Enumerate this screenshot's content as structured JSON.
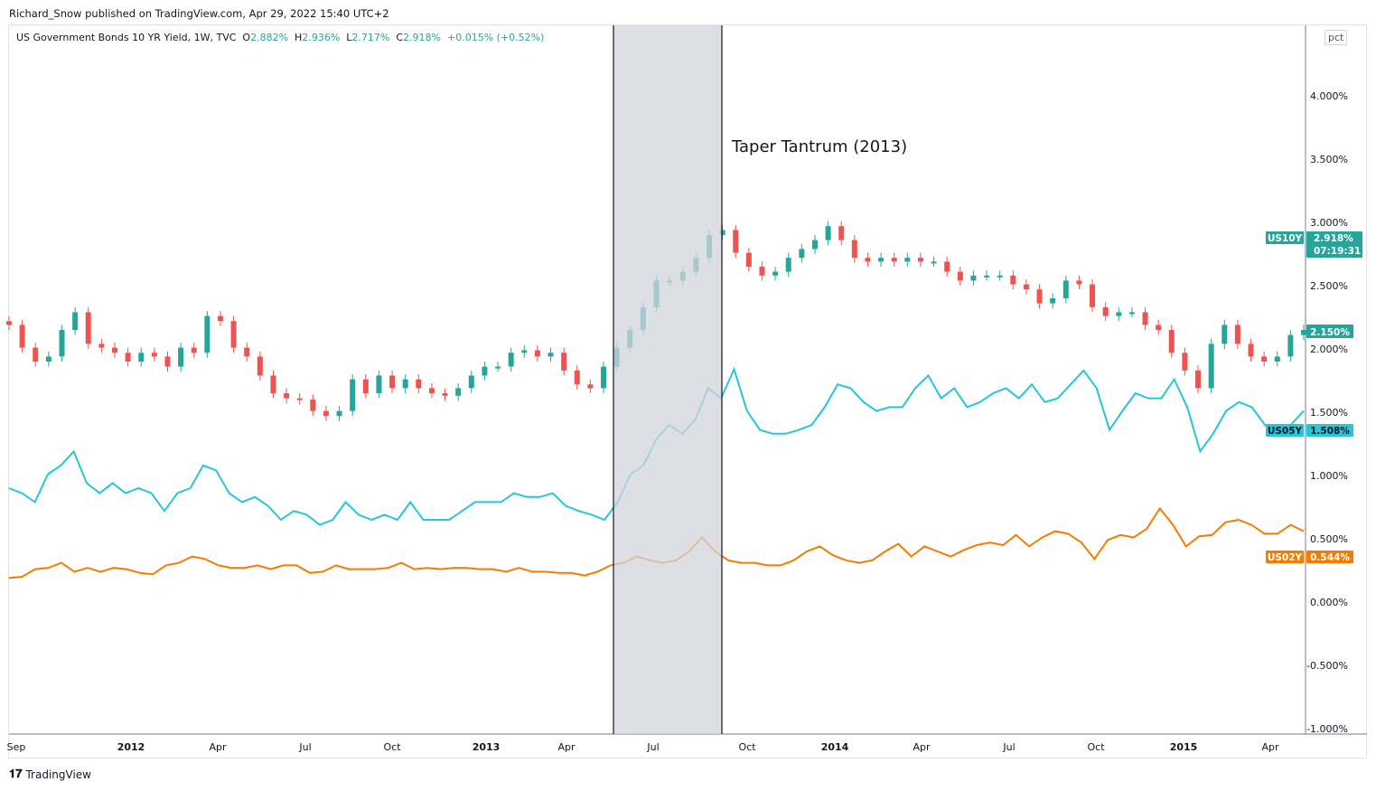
{
  "publisher_line": "Richard_Snow published on TradingView.com, Apr 29, 2022 15:40 UTC+2",
  "legend": {
    "symbol": "US Government Bonds 10 YR Yield, 1W, TVC",
    "o_label": "O",
    "o": "2.882%",
    "h_label": "H",
    "h": "2.936%",
    "l_label": "L",
    "l": "2.717%",
    "c_label": "C",
    "c": "2.918%",
    "change": "+0.015% (+0.52%)"
  },
  "scale_button": "pct",
  "footer_logo": "TradingView",
  "colors": {
    "up": "#26a69a",
    "down": "#ef5350",
    "us05y": "#26c6da",
    "us02y": "#f57c00",
    "shade": "#d1d4dc"
  },
  "chart_data": {
    "type": "candlestick+line",
    "title": "US Government Bonds 10 YR Yield, 1W, TVC",
    "ylabel": "pct",
    "ylim": [
      -1.0,
      4.5
    ],
    "y_ticks": [
      "4.000%",
      "3.500%",
      "3.000%",
      "2.500%",
      "2.000%",
      "1.500%",
      "1.000%",
      "0.500%",
      "0.000%",
      "-0.500%",
      "-1.000%"
    ],
    "y_tick_values": [
      4.0,
      3.5,
      3.0,
      2.5,
      2.0,
      1.5,
      1.0,
      0.5,
      0.0,
      -0.5,
      -1.0
    ],
    "x_ticks": [
      "Sep",
      "2012",
      "Apr",
      "Jul",
      "Oct",
      "2013",
      "Apr",
      "Jul",
      "Oct",
      "2014",
      "Apr",
      "Jul",
      "Oct",
      "2015",
      "Apr"
    ],
    "x_tick_bold": [
      false,
      true,
      false,
      false,
      false,
      true,
      false,
      false,
      false,
      true,
      false,
      false,
      false,
      true,
      false
    ],
    "x_range": [
      "2011-08",
      "2015-05"
    ],
    "annotation": {
      "text": "Taper Tantrum (2013)",
      "start": "2013-05",
      "end": "2013-09"
    },
    "series": [
      {
        "name": "US10Y",
        "kind": "candles",
        "last_label": "2.918%",
        "countdown": "07:19:31",
        "price_label": "2.150%",
        "closes": [
          2.19,
          2.01,
          1.9,
          1.94,
          2.15,
          2.29,
          2.04,
          2.01,
          1.97,
          1.9,
          1.97,
          1.94,
          1.86,
          2.01,
          1.97,
          2.26,
          2.22,
          2.01,
          1.94,
          1.79,
          1.65,
          1.61,
          1.6,
          1.51,
          1.47,
          1.51,
          1.76,
          1.65,
          1.79,
          1.69,
          1.76,
          1.69,
          1.65,
          1.63,
          1.69,
          1.79,
          1.86,
          1.86,
          1.97,
          1.99,
          1.94,
          1.97,
          1.83,
          1.72,
          1.69,
          1.86,
          2.01,
          2.15,
          2.33,
          2.54,
          2.54,
          2.61,
          2.72,
          2.9,
          2.94,
          2.76,
          2.65,
          2.58,
          2.61,
          2.72,
          2.79,
          2.86,
          2.97,
          2.86,
          2.72,
          2.69,
          2.72,
          2.69,
          2.72,
          2.69,
          2.69,
          2.61,
          2.54,
          2.58,
          2.58,
          2.58,
          2.51,
          2.47,
          2.36,
          2.4,
          2.54,
          2.51,
          2.33,
          2.26,
          2.29,
          2.29,
          2.19,
          2.15,
          1.97,
          1.83,
          1.69,
          2.04,
          2.19,
          2.04,
          1.94,
          1.9,
          1.94,
          2.11,
          2.15
        ]
      },
      {
        "name": "US05Y",
        "kind": "line",
        "last_label": "1.508%",
        "values": [
          0.9,
          0.86,
          0.79,
          1.01,
          1.08,
          1.19,
          0.94,
          0.86,
          0.94,
          0.86,
          0.9,
          0.86,
          0.72,
          0.86,
          0.9,
          1.08,
          1.04,
          0.86,
          0.79,
          0.83,
          0.76,
          0.65,
          0.72,
          0.69,
          0.61,
          0.65,
          0.79,
          0.69,
          0.65,
          0.69,
          0.65,
          0.79,
          0.65,
          0.65,
          0.65,
          0.72,
          0.79,
          0.79,
          0.79,
          0.86,
          0.83,
          0.83,
          0.86,
          0.76,
          0.72,
          0.69,
          0.65,
          0.79,
          1.01,
          1.08,
          1.29,
          1.4,
          1.33,
          1.44,
          1.69,
          1.61,
          1.84,
          1.51,
          1.36,
          1.33,
          1.33,
          1.36,
          1.4,
          1.54,
          1.72,
          1.69,
          1.58,
          1.51,
          1.54,
          1.54,
          1.69,
          1.79,
          1.61,
          1.69,
          1.54,
          1.58,
          1.65,
          1.69,
          1.61,
          1.72,
          1.58,
          1.61,
          1.72,
          1.83,
          1.69,
          1.36,
          1.51,
          1.65,
          1.61,
          1.61,
          1.76,
          1.54,
          1.19,
          1.33,
          1.51,
          1.58,
          1.54,
          1.4,
          1.33,
          1.4,
          1.51
        ]
      },
      {
        "name": "US02Y",
        "kind": "line",
        "last_label": "0.544%",
        "values": [
          0.19,
          0.2,
          0.26,
          0.27,
          0.31,
          0.24,
          0.27,
          0.24,
          0.27,
          0.26,
          0.23,
          0.22,
          0.29,
          0.31,
          0.36,
          0.34,
          0.29,
          0.27,
          0.27,
          0.29,
          0.26,
          0.29,
          0.29,
          0.23,
          0.24,
          0.29,
          0.26,
          0.26,
          0.26,
          0.27,
          0.31,
          0.26,
          0.27,
          0.26,
          0.27,
          0.27,
          0.26,
          0.26,
          0.24,
          0.27,
          0.24,
          0.24,
          0.23,
          0.23,
          0.21,
          0.24,
          0.29,
          0.31,
          0.36,
          0.33,
          0.31,
          0.33,
          0.4,
          0.51,
          0.4,
          0.33,
          0.31,
          0.31,
          0.29,
          0.29,
          0.33,
          0.4,
          0.44,
          0.37,
          0.33,
          0.31,
          0.33,
          0.4,
          0.46,
          0.36,
          0.44,
          0.4,
          0.36,
          0.41,
          0.45,
          0.47,
          0.45,
          0.53,
          0.44,
          0.51,
          0.56,
          0.54,
          0.47,
          0.34,
          0.49,
          0.53,
          0.51,
          0.58,
          0.74,
          0.61,
          0.44,
          0.52,
          0.53,
          0.63,
          0.65,
          0.61,
          0.54,
          0.54,
          0.61,
          0.56
        ]
      }
    ]
  }
}
